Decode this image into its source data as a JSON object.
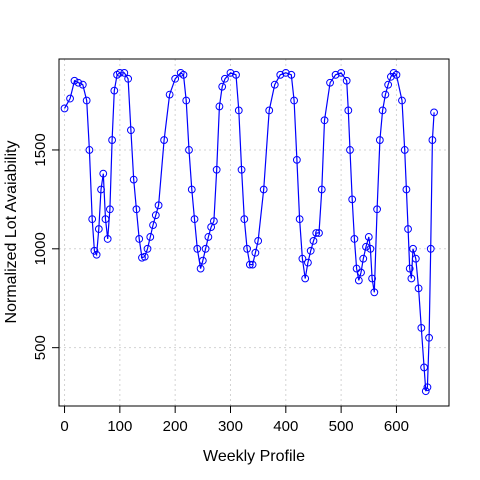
{
  "chart_data": {
    "type": "line",
    "title": "",
    "xlabel": "Weekly Profile",
    "ylabel": "Normalized Lot Avaiability",
    "xlim": [
      -10,
      695
    ],
    "ylim": [
      205,
      1960
    ],
    "x_ticks": [
      0,
      100,
      200,
      300,
      400,
      500,
      600
    ],
    "y_ticks": [
      500,
      1000,
      1500
    ],
    "x_tick_labels": [
      "0",
      "100",
      "200",
      "300",
      "400",
      "500",
      "600"
    ],
    "y_tick_labels": [
      "500",
      "1000",
      "1500"
    ],
    "grid": true,
    "color": "#0000ff",
    "marker": "open-circle",
    "series": [
      {
        "x": [
          0,
          10,
          18,
          25,
          33,
          40,
          45,
          50,
          54,
          58,
          62,
          66,
          70,
          74,
          78,
          82,
          86,
          90,
          95,
          100,
          108,
          115,
          120,
          125,
          130,
          135,
          140,
          145,
          150,
          155,
          160,
          165,
          170,
          180,
          190,
          200,
          210,
          215,
          220,
          225,
          230,
          235,
          240,
          246,
          250,
          255,
          260,
          265,
          270,
          275,
          280,
          285,
          290,
          300,
          310,
          315,
          320,
          325,
          330,
          335,
          340,
          345,
          350,
          360,
          370,
          380,
          390,
          400,
          410,
          415,
          420,
          425,
          430,
          435,
          440,
          445,
          450,
          455,
          460,
          465,
          470,
          480,
          490,
          500,
          510,
          513,
          516,
          520,
          524,
          528,
          532,
          536,
          540,
          545,
          550,
          553,
          556,
          560,
          565,
          570,
          575,
          580,
          585,
          590,
          595,
          600,
          610,
          615,
          618,
          621,
          624,
          627,
          630,
          635,
          640,
          645,
          650,
          653,
          656,
          659,
          662,
          665,
          668
        ],
        "y": [
          1710,
          1760,
          1850,
          1840,
          1830,
          1750,
          1500,
          1150,
          990,
          970,
          1100,
          1300,
          1380,
          1150,
          1050,
          1200,
          1550,
          1800,
          1880,
          1890,
          1890,
          1860,
          1600,
          1350,
          1200,
          1050,
          955,
          960,
          1000,
          1060,
          1120,
          1170,
          1220,
          1550,
          1780,
          1860,
          1890,
          1880,
          1750,
          1500,
          1300,
          1150,
          1000,
          900,
          940,
          1000,
          1060,
          1110,
          1140,
          1400,
          1720,
          1820,
          1860,
          1890,
          1880,
          1700,
          1400,
          1150,
          1000,
          920,
          920,
          980,
          1040,
          1300,
          1700,
          1830,
          1880,
          1890,
          1880,
          1750,
          1450,
          1150,
          950,
          850,
          930,
          990,
          1040,
          1080,
          1080,
          1300,
          1650,
          1840,
          1880,
          1890,
          1850,
          1700,
          1500,
          1250,
          1050,
          900,
          840,
          880,
          950,
          1010,
          1060,
          1000,
          850,
          780,
          1200,
          1550,
          1700,
          1780,
          1830,
          1870,
          1890,
          1880,
          1750,
          1500,
          1300,
          1100,
          900,
          850,
          1000,
          950,
          800,
          600,
          400,
          280,
          300,
          550,
          1000,
          1550,
          1690
        ]
      }
    ]
  }
}
